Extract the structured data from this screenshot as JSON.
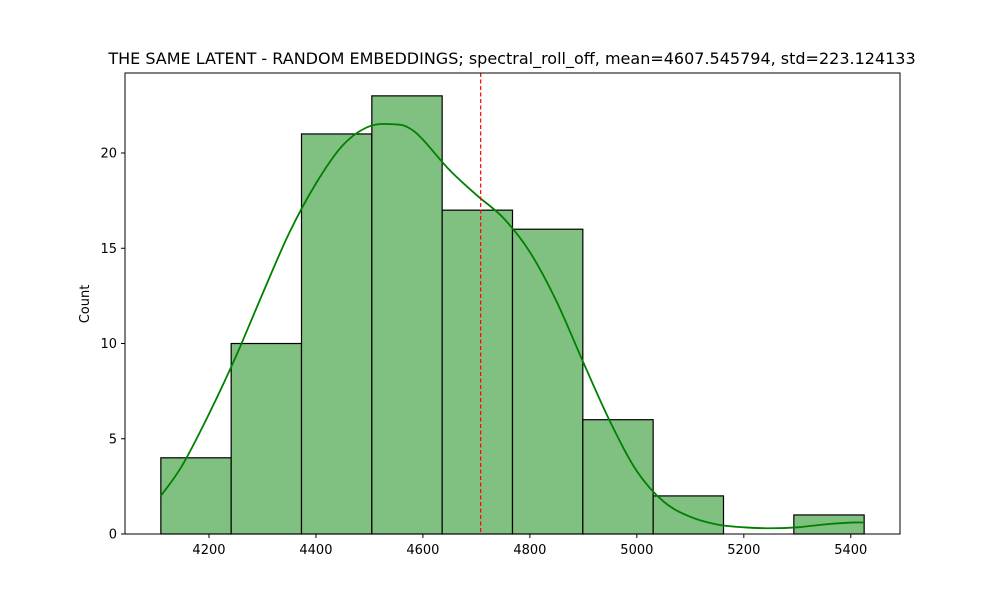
{
  "chart_data": {
    "type": "bar",
    "title": "THE SAME LATENT - RANDOM EMBEDDINGS; spectral_roll_off, mean=4607.545794, std=223.124133",
    "xlabel": "",
    "ylabel": "Count",
    "xlim": [
      4043,
      5492
    ],
    "ylim": [
      0,
      24.2
    ],
    "x_ticks": [
      4200,
      4400,
      4600,
      4800,
      5000,
      5200,
      5400
    ],
    "y_ticks": [
      0,
      5,
      10,
      15,
      20
    ],
    "bin_edges": [
      4110,
      4241.5,
      4373,
      4504.5,
      4636,
      4767.5,
      4899,
      5030.5,
      5162,
      5293.5,
      5425
    ],
    "counts": [
      4,
      10,
      21,
      23,
      17,
      16,
      6,
      2,
      0,
      1
    ],
    "kde": {
      "x": [
        4110,
        4150,
        4200,
        4250,
        4300,
        4350,
        4400,
        4450,
        4500,
        4550,
        4575,
        4600,
        4650,
        4700,
        4750,
        4800,
        4850,
        4900,
        4950,
        5000,
        5050,
        5100,
        5150,
        5200,
        5250,
        5300,
        5350,
        5400,
        5425
      ],
      "y": [
        2.0,
        3.6,
        6.3,
        9.3,
        12.6,
        15.8,
        18.4,
        20.4,
        21.4,
        21.5,
        21.3,
        20.7,
        19.1,
        17.8,
        16.6,
        14.8,
        12.2,
        9.0,
        5.9,
        3.3,
        1.7,
        0.9,
        0.5,
        0.35,
        0.3,
        0.35,
        0.5,
        0.6,
        0.6
      ]
    },
    "vline": {
      "x": 4708,
      "color": "#ff0000",
      "style": "dashed"
    },
    "colors": {
      "bar_fill": "#80c080",
      "bar_edge": "#000000",
      "kde": "#008000"
    },
    "grid": false,
    "legend": "none"
  }
}
